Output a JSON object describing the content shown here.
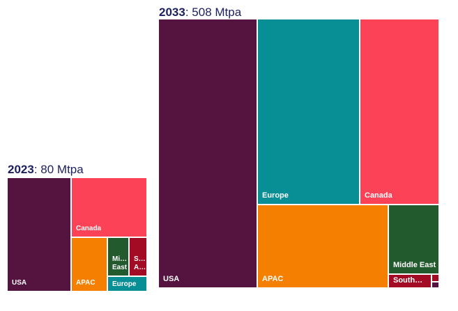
{
  "chart_data": [
    {
      "type": "treemap",
      "year": "2023",
      "total": "80 Mtpa",
      "tiles": [
        {
          "name": "USA",
          "label": "USA",
          "color": "#55143f"
        },
        {
          "name": "Canada",
          "label": "Canada",
          "color": "#fb4257"
        },
        {
          "name": "APAC",
          "label": "APAC",
          "color": "#f57f00"
        },
        {
          "name": "Middle East",
          "label": "Mi…\nEast",
          "color": "#225a2e"
        },
        {
          "name": "South America",
          "label": "S…\nA…",
          "color": "#a30b24"
        },
        {
          "name": "Europe",
          "label": "Europe",
          "color": "#078f95"
        }
      ]
    },
    {
      "type": "treemap",
      "year": "2033",
      "total": "508 Mtpa",
      "tiles": [
        {
          "name": "USA",
          "label": "USA",
          "color": "#55143f"
        },
        {
          "name": "Europe",
          "label": "Europe",
          "color": "#078f95"
        },
        {
          "name": "Canada",
          "label": "Canada",
          "color": "#fb4257"
        },
        {
          "name": "APAC",
          "label": "APAC",
          "color": "#f57f00"
        },
        {
          "name": "Middle East",
          "label": "Middle East",
          "color": "#225a2e"
        },
        {
          "name": "South America",
          "label": "South…",
          "color": "#a30b24"
        },
        {
          "name": "other-1",
          "label": "",
          "color": "#a30b24"
        },
        {
          "name": "other-2",
          "label": "",
          "color": "#55143f"
        }
      ]
    }
  ]
}
